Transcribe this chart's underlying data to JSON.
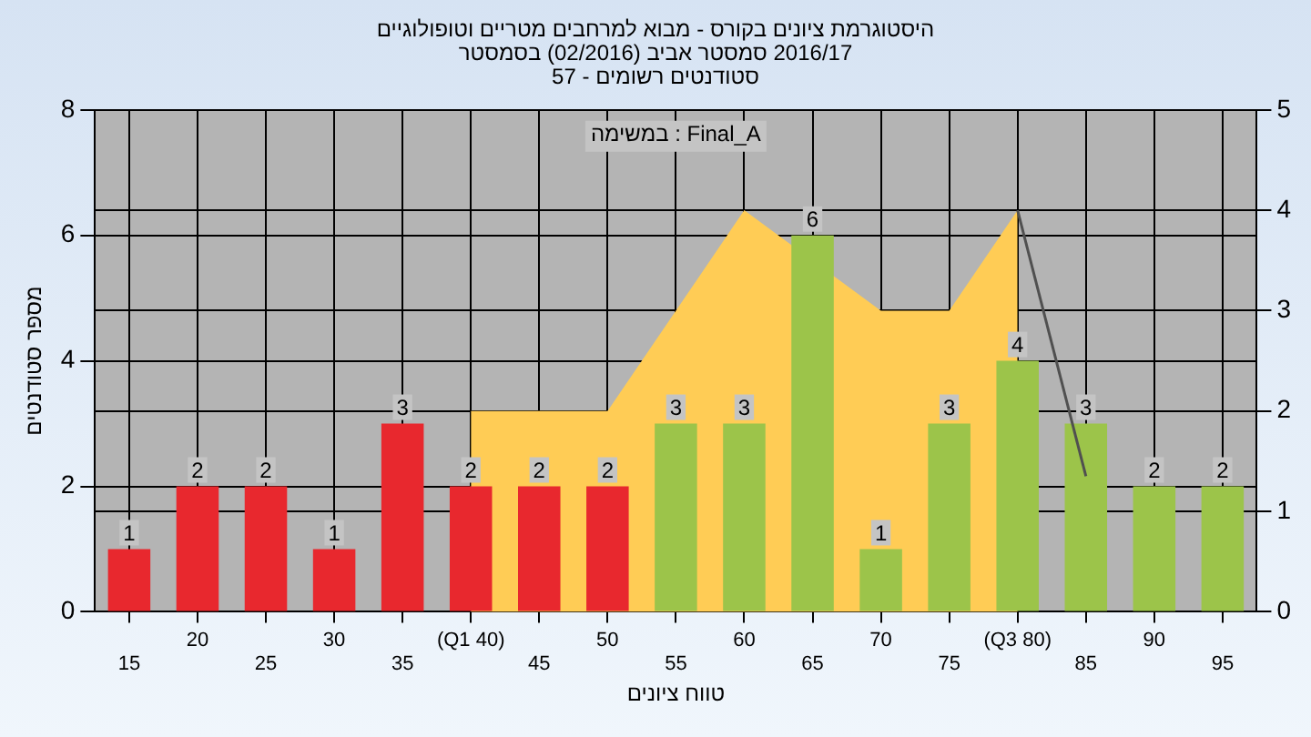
{
  "chart_data": {
    "type": "bar",
    "title": [
      "היסטוגרמת ציונים בקורס - מבוא למרחבים מטריים וטופולוגיים",
      "2016/17 סמסטר אביב (02/2016) בסמסטר",
      "סטודנטים רשומים - 57"
    ],
    "xlabel": "טווח ציונים",
    "ylabel": "מספר סטודנטים",
    "annotations": [
      "במשימה : Final_A"
    ],
    "categories": [
      "15",
      "20",
      "25",
      "30",
      "35",
      "(Q1 40)",
      "45",
      "50",
      "55",
      "60",
      "65",
      "70",
      "75",
      "(Q3 80)",
      "85",
      "90",
      "95"
    ],
    "series": [
      {
        "type": "area",
        "axis": "y2",
        "color": "#ffcc55",
        "values": [
          null,
          null,
          null,
          null,
          null,
          2,
          2,
          2,
          3,
          4,
          null,
          3,
          3,
          4,
          null,
          null,
          null
        ]
      },
      {
        "type": "line",
        "axis": "y2",
        "color": "#505050",
        "values": [
          null,
          null,
          null,
          null,
          null,
          null,
          null,
          null,
          null,
          null,
          null,
          null,
          null,
          4,
          1.35,
          null,
          null
        ]
      },
      {
        "colors": [
          "#e8282e",
          "#e8282e",
          "#e8282e",
          "#e8282e",
          "#e8282e",
          "#e8282e",
          "#e8282e",
          "#e8282e",
          "#9cc44a",
          "#9cc44a",
          "#9cc44a",
          "#9cc44a",
          "#9cc44a",
          "#9cc44a",
          "#9cc44a",
          "#9cc44a",
          "#9cc44a"
        ],
        "values": [
          1,
          2,
          2,
          1,
          3,
          2,
          2,
          2,
          3,
          3,
          6,
          1,
          3,
          4,
          3,
          2,
          2
        ],
        "value_labels": [
          "1",
          "2",
          "2",
          "1",
          "3",
          "2",
          "2",
          "2",
          "3",
          "3",
          "6",
          "1",
          "3",
          "4",
          "3",
          "2",
          "2"
        ]
      }
    ],
    "ylim": [
      0,
      8
    ],
    "yticks": [
      0,
      2,
      4,
      6,
      8
    ],
    "y2lim": [
      0,
      5
    ],
    "y2ticks": [
      0,
      1,
      2,
      3,
      4,
      5
    ],
    "grid": true,
    "legend": false
  }
}
